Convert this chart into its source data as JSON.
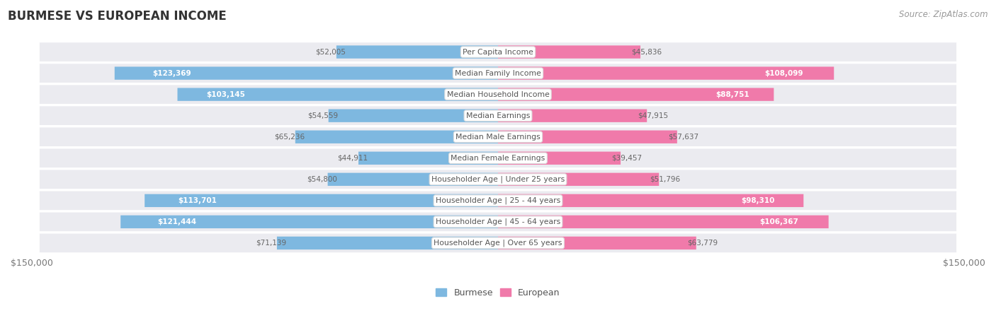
{
  "title": "BURMESE VS EUROPEAN INCOME",
  "source": "Source: ZipAtlas.com",
  "categories": [
    "Per Capita Income",
    "Median Family Income",
    "Median Household Income",
    "Median Earnings",
    "Median Male Earnings",
    "Median Female Earnings",
    "Householder Age | Under 25 years",
    "Householder Age | 25 - 44 years",
    "Householder Age | 45 - 64 years",
    "Householder Age | Over 65 years"
  ],
  "burmese_values": [
    52005,
    123369,
    103145,
    54559,
    65236,
    44911,
    54800,
    113701,
    121444,
    71139
  ],
  "european_values": [
    45836,
    108099,
    88751,
    47915,
    57637,
    39457,
    51796,
    98310,
    106367,
    63779
  ],
  "burmese_labels": [
    "$52,005",
    "$123,369",
    "$103,145",
    "$54,559",
    "$65,236",
    "$44,911",
    "$54,800",
    "$113,701",
    "$121,444",
    "$71,139"
  ],
  "european_labels": [
    "$45,836",
    "$108,099",
    "$88,751",
    "$47,915",
    "$57,637",
    "$39,457",
    "$51,796",
    "$98,310",
    "$106,367",
    "$63,779"
  ],
  "max_value": 150000,
  "burmese_color": "#7eb8e0",
  "european_color": "#f07aaa",
  "row_bg_color": "#ebebf0",
  "fig_bg_color": "#ffffff",
  "title_color": "#333333",
  "source_color": "#999999",
  "cat_label_color": "#555555",
  "value_label_white_threshold": 75000,
  "axis_tick_color": "#777777",
  "legend_label_color": "#555555"
}
